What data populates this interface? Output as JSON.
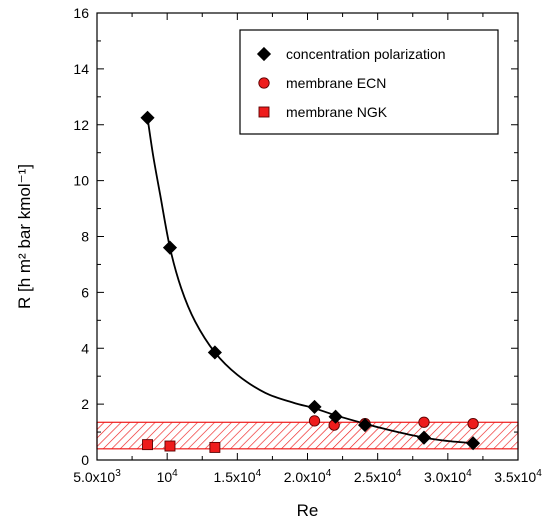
{
  "chart_data": {
    "type": "scatter",
    "xlabel": "Re",
    "ylabel": "R [h m² bar kmol⁻¹]",
    "xlim": [
      5000,
      35000
    ],
    "ylim": [
      0,
      16
    ],
    "x_ticks": [
      {
        "value": 5000,
        "label": "5.0x10",
        "exp": "3"
      },
      {
        "value": 10000,
        "label": "10",
        "exp": "4"
      },
      {
        "value": 15000,
        "label": "1.5x10",
        "exp": "4"
      },
      {
        "value": 20000,
        "label": "2.0x10",
        "exp": "4"
      },
      {
        "value": 25000,
        "label": "2.5x10",
        "exp": "4"
      },
      {
        "value": 30000,
        "label": "3.0x10",
        "exp": "4"
      },
      {
        "value": 35000,
        "label": "3.5x10",
        "exp": "4"
      }
    ],
    "y_ticks": [
      0,
      2,
      4,
      6,
      8,
      10,
      12,
      14,
      16
    ],
    "series": [
      {
        "name": "concentration polarization",
        "marker": "diamond",
        "color": "#000000",
        "points": [
          [
            8600,
            12.25
          ],
          [
            10200,
            7.6
          ],
          [
            13400,
            3.85
          ],
          [
            20500,
            1.9
          ],
          [
            22000,
            1.55
          ],
          [
            24100,
            1.25
          ],
          [
            28300,
            0.8
          ],
          [
            31800,
            0.6
          ]
        ]
      },
      {
        "name": "membrane ECN",
        "marker": "circle",
        "color": "#ee1c1c",
        "points": [
          [
            20500,
            1.4
          ],
          [
            21900,
            1.25
          ],
          [
            24100,
            1.3
          ],
          [
            28300,
            1.35
          ],
          [
            31800,
            1.3
          ]
        ]
      },
      {
        "name": "membrane NGK",
        "marker": "square",
        "color": "#ee1c1c",
        "points": [
          [
            8600,
            0.55
          ],
          [
            10200,
            0.5
          ],
          [
            13400,
            0.45
          ]
        ]
      }
    ],
    "fit_curve": {
      "color": "#000000",
      "points": [
        [
          8600,
          12.25
        ],
        [
          9000,
          10.9
        ],
        [
          9500,
          9.5
        ],
        [
          10200,
          7.6
        ],
        [
          11000,
          6.15
        ],
        [
          12000,
          4.95
        ],
        [
          13400,
          3.85
        ],
        [
          15000,
          3.05
        ],
        [
          17000,
          2.4
        ],
        [
          19000,
          2.05
        ],
        [
          20500,
          1.85
        ],
        [
          22000,
          1.6
        ],
        [
          24100,
          1.3
        ],
        [
          26000,
          1.05
        ],
        [
          28300,
          0.8
        ],
        [
          30000,
          0.68
        ],
        [
          31800,
          0.6
        ]
      ]
    },
    "band": {
      "y_from": 0.4,
      "y_to": 1.35,
      "color": "#ee1c1c"
    },
    "legend_position": "top-right",
    "grid": false
  }
}
